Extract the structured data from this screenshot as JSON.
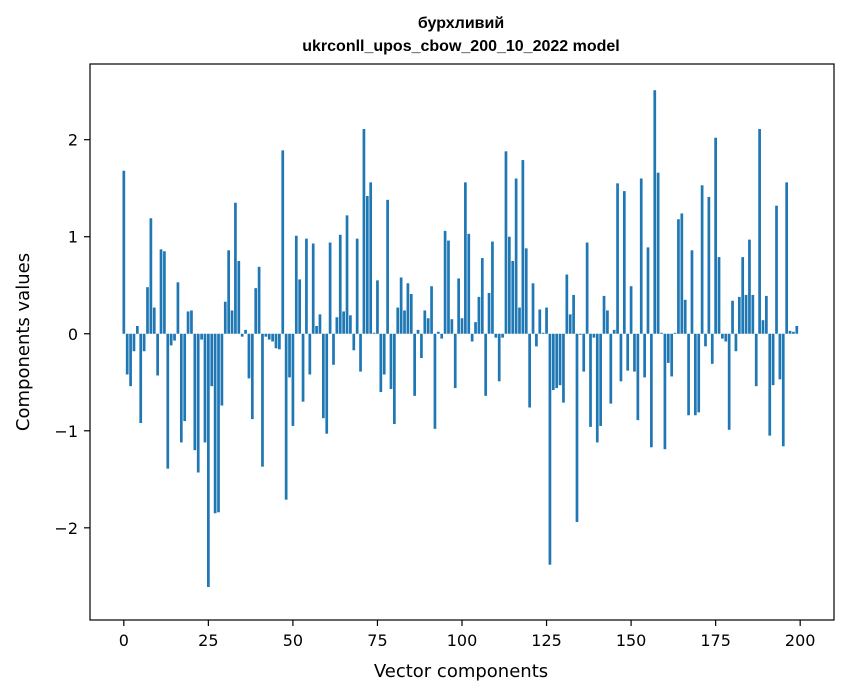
{
  "chart_data": {
    "type": "bar",
    "title": "бурхливий",
    "subtitle": "ukrconll_upos_cbow_200_10_2022 model",
    "xlabel": "Vector components",
    "ylabel": "Components values",
    "xlim": [
      -10,
      210
    ],
    "ylim": [
      -2.95,
      2.78
    ],
    "xticks": [
      0,
      25,
      50,
      75,
      100,
      125,
      150,
      175,
      200
    ],
    "xtick_labels": [
      "0",
      "25",
      "50",
      "75",
      "100",
      "125",
      "150",
      "175",
      "200"
    ],
    "yticks": [
      -2,
      -1,
      0,
      1,
      2
    ],
    "ytick_labels": [
      "−2",
      "−1",
      "0",
      "1",
      "2"
    ],
    "bar_color": "#1f77b4",
    "grid": false,
    "values": [
      1.68,
      -0.42,
      -0.54,
      -0.18,
      0.08,
      -0.92,
      -0.18,
      0.48,
      1.19,
      0.27,
      -0.43,
      0.87,
      0.85,
      -1.39,
      -0.12,
      -0.07,
      0.53,
      -1.12,
      -0.9,
      0.23,
      0.24,
      -1.2,
      -1.43,
      -0.06,
      -1.12,
      -2.61,
      -0.54,
      -1.85,
      -1.84,
      -0.74,
      0.33,
      0.86,
      0.24,
      1.35,
      0.75,
      -0.03,
      0.04,
      -0.46,
      -0.88,
      0.47,
      0.69,
      -1.37,
      -0.03,
      -0.06,
      -0.08,
      -0.15,
      -0.16,
      1.89,
      -1.71,
      -0.45,
      -0.95,
      1.01,
      0.56,
      -0.7,
      0.98,
      -0.42,
      0.93,
      0.08,
      0.2,
      -0.87,
      -1.03,
      0.94,
      -0.32,
      0.17,
      1.02,
      0.23,
      1.22,
      0.19,
      -0.17,
      0.98,
      -0.39,
      2.11,
      1.42,
      1.56,
      0.01,
      0.55,
      -0.6,
      -0.42,
      1.38,
      -0.57,
      -0.93,
      0.27,
      0.58,
      0.24,
      0.52,
      0.41,
      -0.64,
      0.04,
      -0.25,
      0.24,
      0.16,
      0.49,
      -0.98,
      0.02,
      -0.05,
      1.06,
      0.96,
      0.15,
      -0.56,
      0.57,
      0.16,
      1.56,
      1.03,
      -0.08,
      0.12,
      0.38,
      0.78,
      -0.64,
      0.42,
      0.95,
      -0.04,
      -0.49,
      -0.04,
      1.88,
      1.0,
      0.75,
      1.6,
      0.27,
      1.79,
      0.88,
      -0.76,
      0.52,
      -0.13,
      0.25,
      0.01,
      0.27,
      -2.38,
      -0.58,
      -0.56,
      -0.53,
      -0.71,
      0.61,
      0.2,
      0.4,
      -1.94,
      -0.01,
      -0.39,
      0.94,
      -0.96,
      -0.04,
      -1.12,
      -0.95,
      0.39,
      0.24,
      -0.72,
      0.04,
      1.55,
      -0.49,
      1.47,
      -0.38,
      0.49,
      -0.39,
      -0.89,
      1.6,
      -0.45,
      0.89,
      -1.17,
      2.51,
      1.66,
      0.01,
      -1.19,
      -0.3,
      -0.44,
      0.01,
      1.18,
      1.24,
      0.35,
      -0.84,
      0.86,
      -0.84,
      -0.81,
      1.53,
      -0.13,
      1.41,
      -0.31,
      2.02,
      0.79,
      -0.05,
      -0.08,
      -0.99,
      0.34,
      -0.18,
      0.38,
      0.79,
      0.4,
      0.97,
      0.4,
      -0.54,
      2.11,
      0.14,
      0.39,
      -1.05,
      -0.53,
      1.32,
      -0.47,
      -1.16,
      1.56,
      0.03,
      0.02,
      0.08
    ]
  }
}
